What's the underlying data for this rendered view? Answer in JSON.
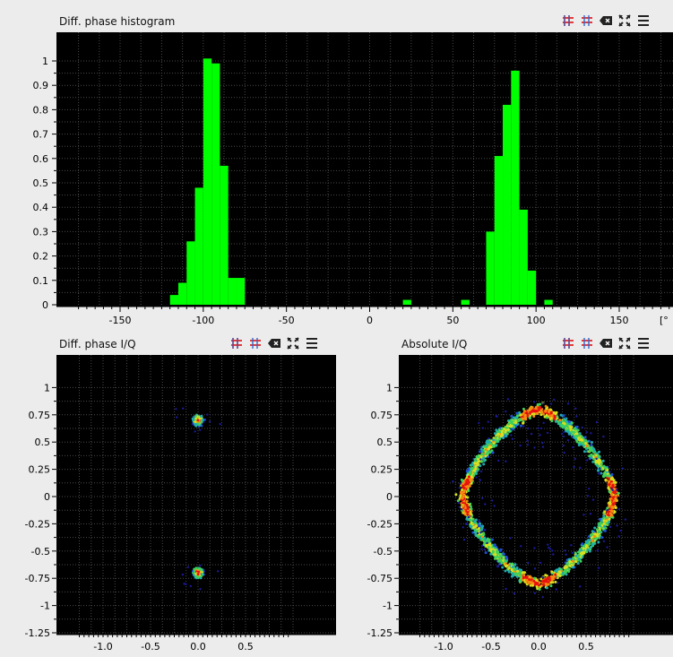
{
  "panels": {
    "histogram": {
      "title": "Diff. phase histogram",
      "unit": "[°"
    },
    "diff_iq": {
      "title": "Diff. phase I/Q"
    },
    "abs_iq": {
      "title": "Absolute I/Q"
    }
  },
  "toolbar_icons": [
    "grid-red-icon",
    "grid-blue-icon",
    "backspace-icon",
    "expand-icon",
    "menu-icon"
  ],
  "colors": {
    "histogram_bar": "#00ff00",
    "plot_bg": "#000000",
    "window_bg": "#ececec"
  },
  "chart_data": [
    {
      "type": "bar",
      "title": "Diff. phase histogram",
      "xlabel": "",
      "ylabel": "",
      "xlim": [
        -180,
        180
      ],
      "ylim": [
        0,
        1.04
      ],
      "x_ticks": [
        "-150",
        "-100",
        "-50",
        "0",
        "50",
        "100",
        "150"
      ],
      "y_ticks": [
        "0",
        "0.1",
        "0.2",
        "0.3",
        "0.4",
        "0.5",
        "0.6",
        "0.7",
        "0.8",
        "0.9",
        "1"
      ],
      "bin_width": 5,
      "bins": [
        {
          "x": -117.5,
          "y": 0.04
        },
        {
          "x": -112.5,
          "y": 0.09
        },
        {
          "x": -107.5,
          "y": 0.26
        },
        {
          "x": -102.5,
          "y": 0.48
        },
        {
          "x": -97.5,
          "y": 1.01
        },
        {
          "x": -92.5,
          "y": 0.99
        },
        {
          "x": -87.5,
          "y": 0.57
        },
        {
          "x": -82.5,
          "y": 0.11
        },
        {
          "x": -77.5,
          "y": 0.11
        },
        {
          "x": 22.5,
          "y": 0.02
        },
        {
          "x": 57.5,
          "y": 0.02
        },
        {
          "x": 72.5,
          "y": 0.3
        },
        {
          "x": 77.5,
          "y": 0.61
        },
        {
          "x": 82.5,
          "y": 0.82
        },
        {
          "x": 87.5,
          "y": 0.96
        },
        {
          "x": 92.5,
          "y": 0.39
        },
        {
          "x": 97.5,
          "y": 0.14
        },
        {
          "x": 107.5,
          "y": 0.02
        }
      ]
    },
    {
      "type": "scatter",
      "title": "Diff. phase I/Q",
      "xlim": [
        -1.3,
        0.9
      ],
      "ylim": [
        -1.25,
        1.1
      ],
      "x_ticks": [
        "-1.0",
        "-0.5",
        "0.0",
        "0.5"
      ],
      "y_ticks": [
        "1",
        "0.75",
        "0.5",
        "0.25",
        "0",
        "-0.25",
        "-0.5",
        "-0.75",
        "-1",
        "-1.25"
      ],
      "clusters": [
        {
          "i": 0.0,
          "q": 0.7
        },
        {
          "i": 0.0,
          "q": -0.7
        }
      ]
    },
    {
      "type": "scatter",
      "title": "Absolute I/Q",
      "xlim": [
        -1.3,
        0.9
      ],
      "ylim": [
        -1.25,
        1.1
      ],
      "x_ticks": [
        "-1.0",
        "-0.5",
        "0.0",
        "0.5"
      ],
      "y_ticks": [
        "1",
        "0.75",
        "0.5",
        "0.25",
        "0",
        "-0.25",
        "-0.5",
        "-0.75",
        "-1",
        "-1.25"
      ],
      "clusters": [
        {
          "i": 0.0,
          "q": 0.78
        },
        {
          "i": 0.0,
          "q": -0.78
        },
        {
          "i": -0.8,
          "q": 0.0
        },
        {
          "i": 0.8,
          "q": 0.0
        }
      ]
    }
  ]
}
